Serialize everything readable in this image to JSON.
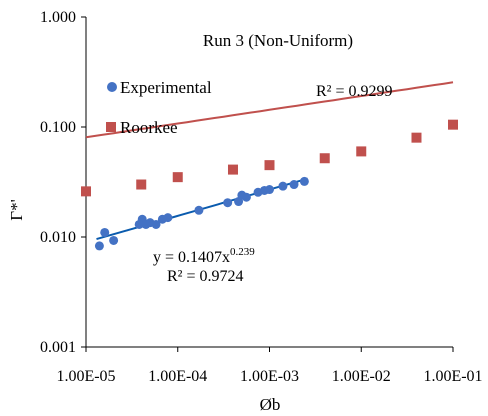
{
  "chart_data": {
    "type": "scatter",
    "title": "Run 3 (Non-Uniform)",
    "xlabel": "Øb",
    "ylabel": "Γ*'",
    "xscale": "log",
    "yscale": "log",
    "xlim": [
      1e-05,
      0.1
    ],
    "ylim": [
      0.001,
      1
    ],
    "x_tick_labels": [
      "1.00E-05",
      "1.00E-04",
      "1.00E-03",
      "1.00E-02",
      "1.00E-01"
    ],
    "y_tick_labels": [
      "0.001",
      "0.010",
      "0.100",
      "1.000"
    ],
    "grid": false,
    "legend_position": "upper-left",
    "series": [
      {
        "name": "Experimental",
        "marker": "circle",
        "color": "#4472C4",
        "trendline_color": "#0A5BAE",
        "x": [
          1.4e-05,
          1.6e-05,
          2e-05,
          3.8e-05,
          4.1e-05,
          4.5e-05,
          5e-05,
          5.8e-05,
          6.8e-05,
          7.8e-05,
          0.00017,
          0.00035,
          0.00046,
          0.0005,
          0.00056,
          0.00075,
          0.00088,
          0.001,
          0.0014,
          0.00185,
          0.0024
        ],
        "y": [
          0.0083,
          0.011,
          0.0093,
          0.013,
          0.0145,
          0.013,
          0.0135,
          0.013,
          0.0145,
          0.015,
          0.0175,
          0.0205,
          0.021,
          0.024,
          0.023,
          0.0255,
          0.0265,
          0.027,
          0.029,
          0.03,
          0.032
        ],
        "trendline": {
          "equation": "y = 0.1407x",
          "exponent": "0.239",
          "r2": "R² = 0.9724",
          "a": 0.1407,
          "b": 0.239,
          "x_range": [
            1.3e-05,
            0.0026
          ]
        }
      },
      {
        "name": "Roorkee",
        "marker": "square",
        "color": "#C0504D",
        "trendline_color": "#C0504D",
        "x": [
          1e-05,
          4e-05,
          0.0001,
          0.0004,
          0.001,
          0.004,
          0.01,
          0.04,
          0.1
        ],
        "y": [
          0.026,
          0.03,
          0.035,
          0.041,
          0.045,
          0.052,
          0.06,
          0.08,
          0.105
        ],
        "trendline": {
          "r2": "R² = 0.9299",
          "a": 0.34,
          "b": 0.125,
          "x_range": [
            1e-05,
            0.1
          ]
        }
      }
    ]
  }
}
